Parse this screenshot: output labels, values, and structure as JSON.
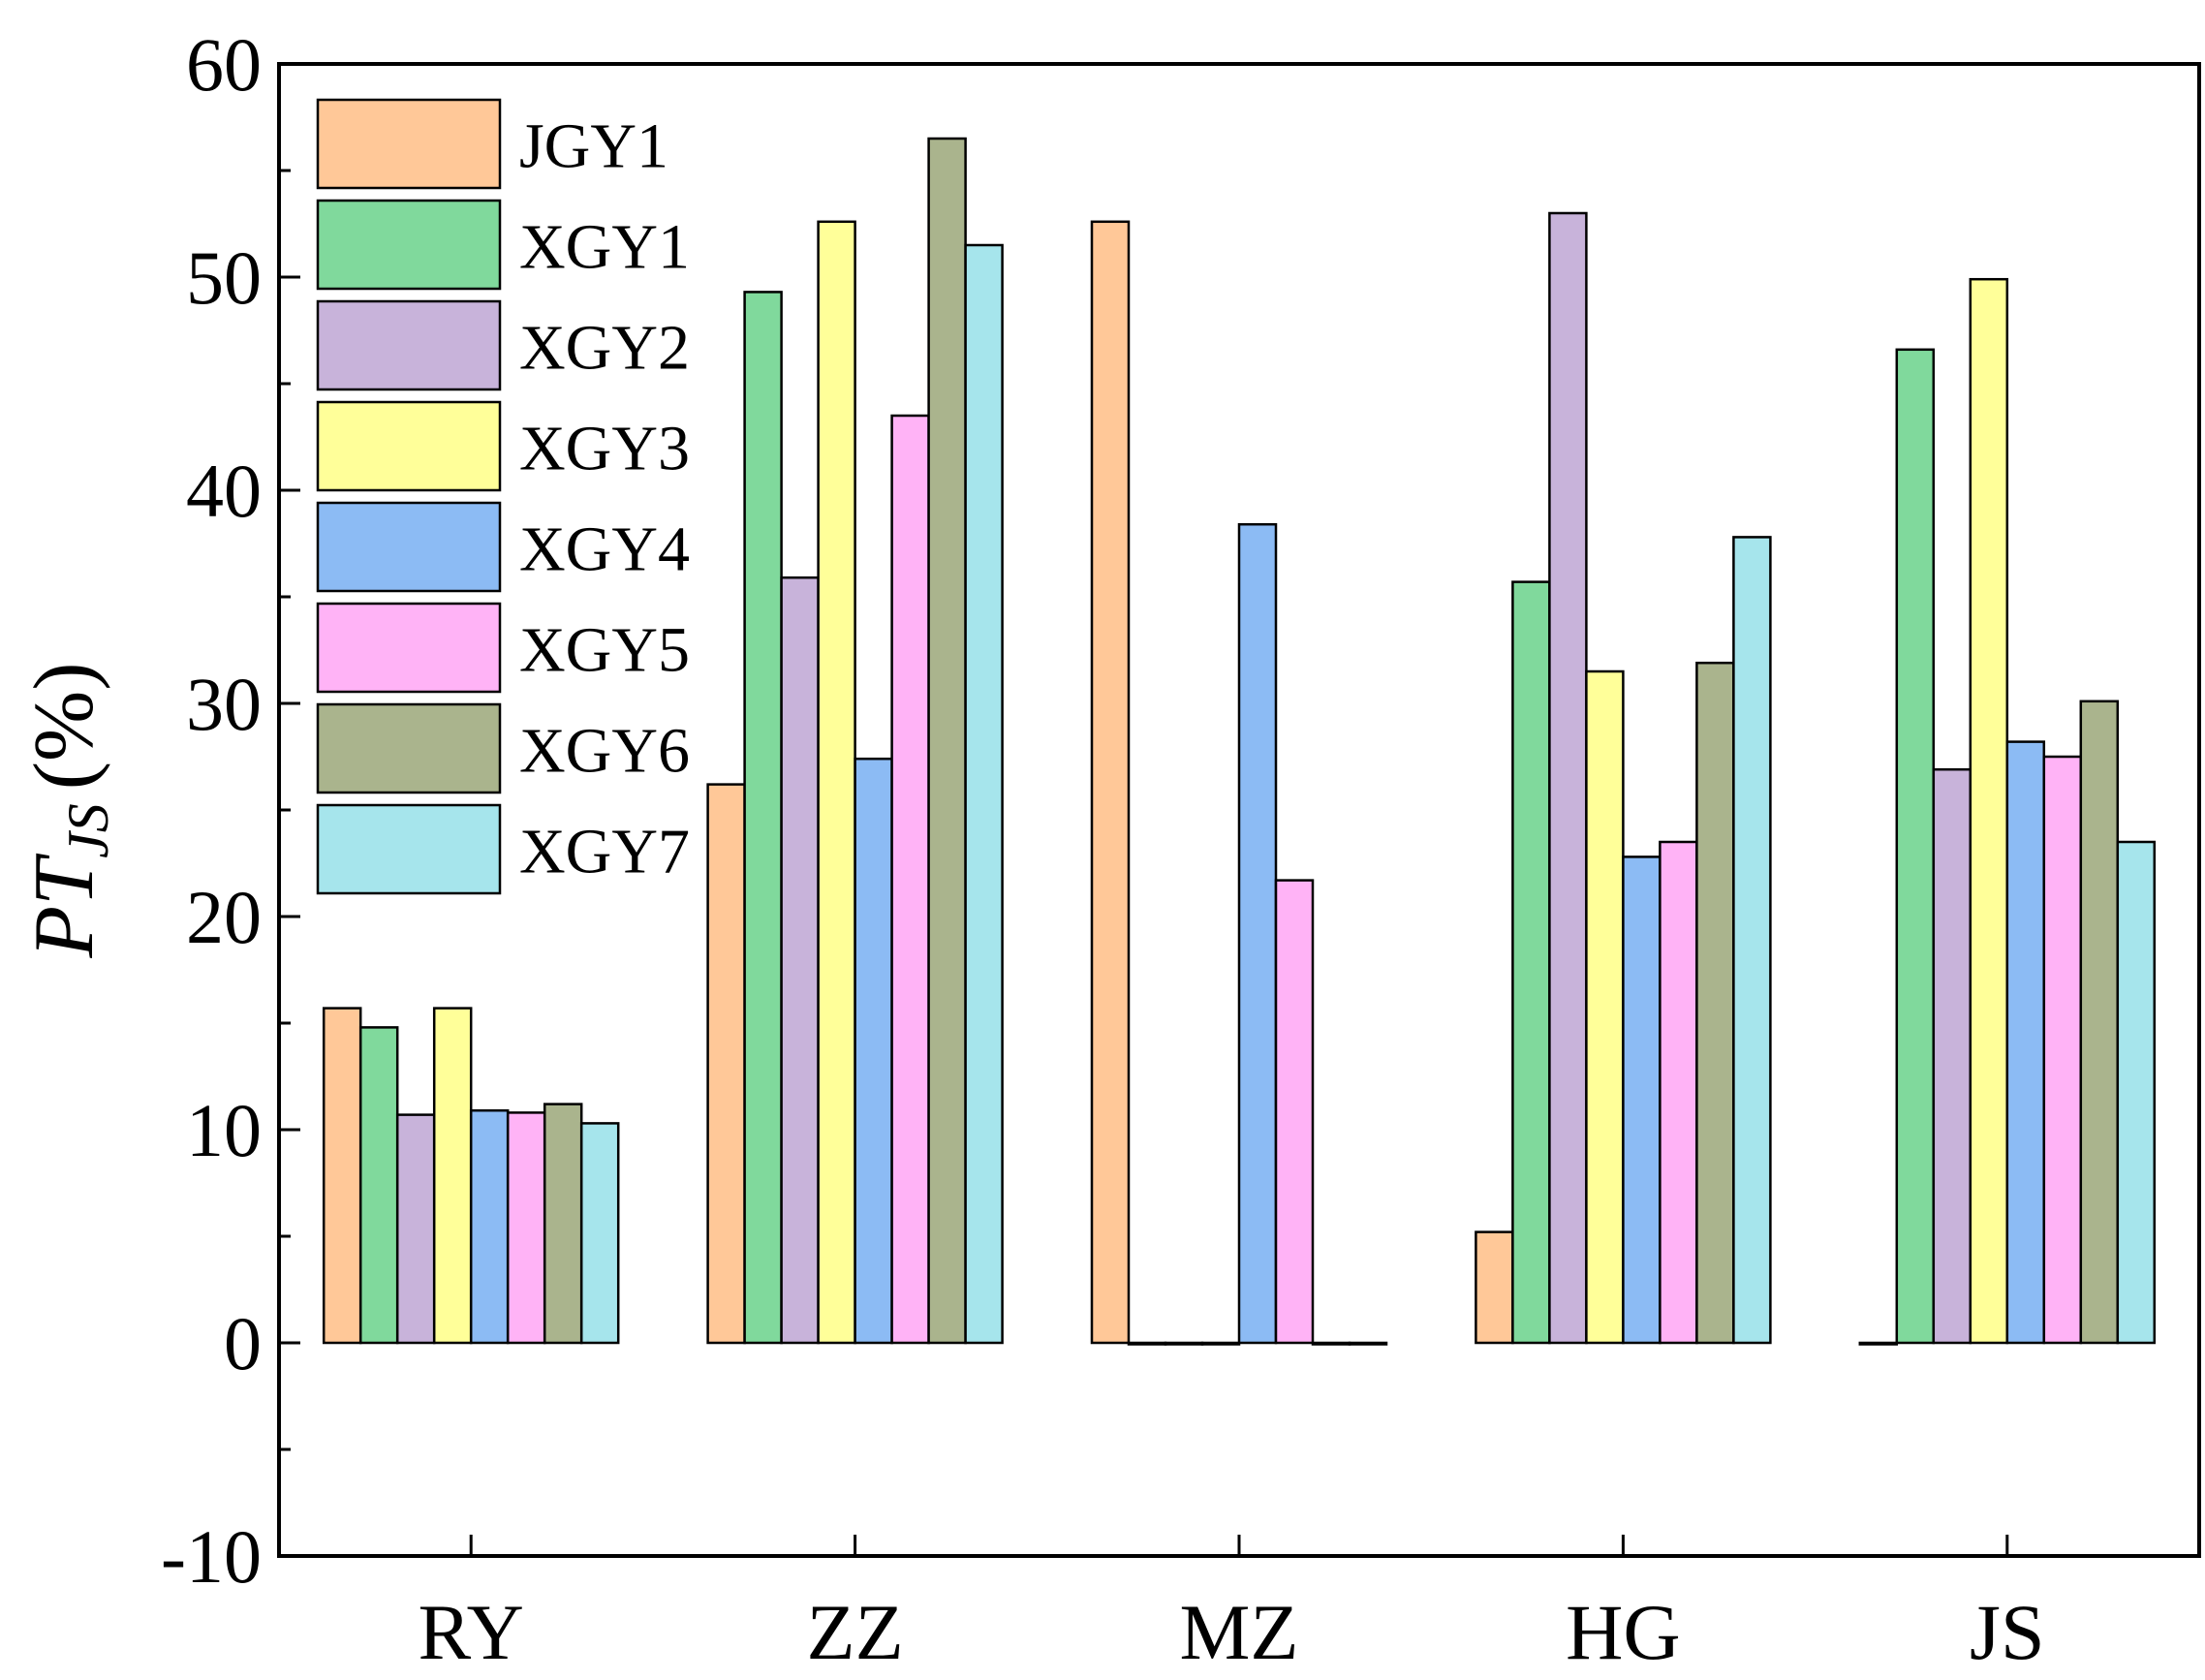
{
  "chart_data": {
    "type": "bar",
    "title": "",
    "xlabel": "",
    "ylabel": {
      "main": "PT",
      "sub": "JS",
      "unit": "(%)"
    },
    "ylim": [
      -10,
      60
    ],
    "yticks": [
      -10,
      0,
      10,
      20,
      30,
      40,
      50,
      60
    ],
    "categories": [
      "RY",
      "ZZ",
      "MZ",
      "HG",
      "JS"
    ],
    "legend_position": "top-left",
    "series": [
      {
        "name": "JGY1",
        "color": "#FFC898",
        "values": [
          15.7,
          26.2,
          52.6,
          5.2,
          0.0
        ]
      },
      {
        "name": "XGY1",
        "color": "#80D99C",
        "values": [
          14.8,
          49.3,
          0.0,
          35.7,
          46.6
        ]
      },
      {
        "name": "XGY2",
        "color": "#C8B3DA",
        "values": [
          10.7,
          35.9,
          0.0,
          53.0,
          26.9
        ]
      },
      {
        "name": "XGY3",
        "color": "#FFFF99",
        "values": [
          15.7,
          52.6,
          0.0,
          31.5,
          49.9
        ]
      },
      {
        "name": "XGY4",
        "color": "#8CBBF4",
        "values": [
          10.9,
          27.4,
          38.4,
          22.8,
          28.2
        ]
      },
      {
        "name": "XGY5",
        "color": "#FFB3F6",
        "values": [
          10.8,
          43.5,
          21.7,
          23.5,
          27.5
        ]
      },
      {
        "name": "XGY6",
        "color": "#AAB48D",
        "values": [
          11.2,
          56.5,
          0.0,
          31.9,
          30.1
        ]
      },
      {
        "name": "XGY7",
        "color": "#A6E5EC",
        "values": [
          10.3,
          51.5,
          0.0,
          37.8,
          23.5
        ]
      }
    ]
  }
}
